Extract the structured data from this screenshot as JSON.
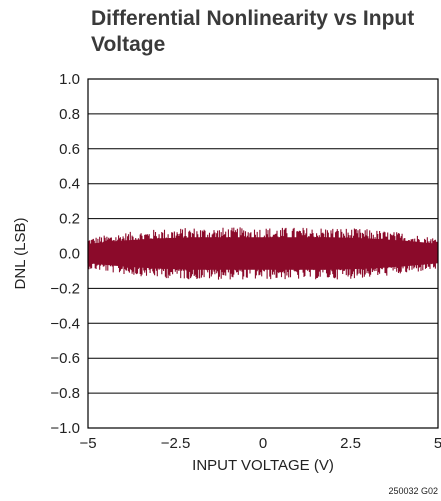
{
  "chart_data": {
    "type": "line",
    "title_lines": [
      "Differential Nonlinearity vs Input",
      "Voltage"
    ],
    "xlabel": "INPUT VOLTAGE (V)",
    "ylabel": "DNL (LSB)",
    "xlim": [
      -5,
      5
    ],
    "ylim": [
      -1,
      1
    ],
    "x_ticks": [
      -5,
      -2.5,
      0,
      2.5,
      5
    ],
    "x_tick_labels": [
      "−5",
      "−2.5",
      "0",
      "2.5",
      "5"
    ],
    "y_ticks": [
      1.0,
      0.8,
      0.6,
      0.4,
      0.2,
      0.0,
      -0.2,
      -0.4,
      -0.6,
      -0.8,
      -1.0
    ],
    "y_tick_labels": [
      "1.0",
      "0.8",
      "0.6",
      "0.4",
      "0.2",
      "0.0",
      "−0.2",
      "−0.4",
      "−0.6",
      "−0.8",
      "−1.0"
    ],
    "grid": "horizontal",
    "series": [
      {
        "color": "#8b0a2a",
        "x": [
          -5,
          -4,
          -3,
          -2,
          -1,
          0,
          1,
          2,
          3,
          4,
          5
        ],
        "y_max": [
          0.09,
          0.12,
          0.14,
          0.15,
          0.15,
          0.15,
          0.15,
          0.15,
          0.14,
          0.12,
          0.09
        ],
        "y_min": [
          -0.09,
          -0.12,
          -0.14,
          -0.15,
          -0.15,
          -0.15,
          -0.15,
          -0.15,
          -0.14,
          -0.12,
          -0.09
        ]
      }
    ],
    "figure_code": "250032 G02"
  }
}
